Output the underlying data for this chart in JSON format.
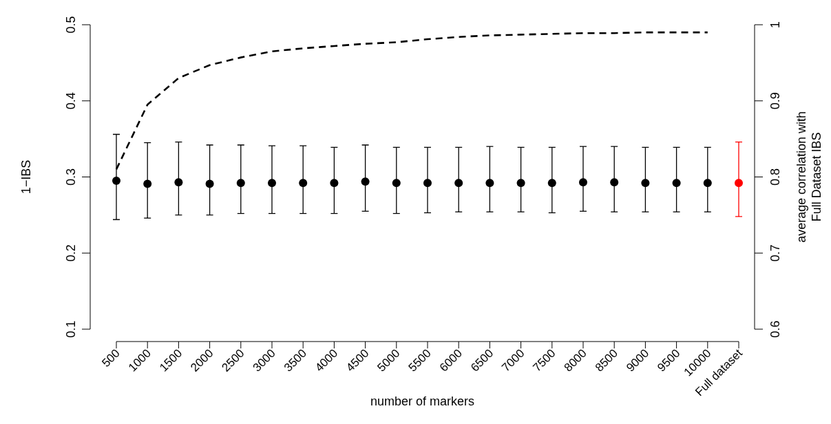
{
  "chart_data": {
    "type": "scatter",
    "xlabel": "number of markers",
    "ylabel": "1−IBS",
    "y2label": "average correlation with\nFull Dataset IBS",
    "categories": [
      "500",
      "1000",
      "1500",
      "2000",
      "2500",
      "3000",
      "3500",
      "4000",
      "4500",
      "5000",
      "5500",
      "6000",
      "6500",
      "7000",
      "7500",
      "8000",
      "8500",
      "9000",
      "9500",
      "10000",
      "Full dataset"
    ],
    "ylim": [
      0.1,
      0.5
    ],
    "yticks": [
      0.1,
      0.2,
      0.3,
      0.4,
      0.5
    ],
    "y2lim": [
      0.6,
      1
    ],
    "y2ticks": [
      0.6,
      0.7,
      0.8,
      0.9,
      1
    ],
    "grid": false,
    "series": [
      {
        "marker": "circle",
        "colors": [
          "#000000",
          "#000000",
          "#000000",
          "#000000",
          "#000000",
          "#000000",
          "#000000",
          "#000000",
          "#000000",
          "#000000",
          "#000000",
          "#000000",
          "#000000",
          "#000000",
          "#000000",
          "#000000",
          "#000000",
          "#000000",
          "#000000",
          "#000000",
          "#ff0000"
        ],
        "values": [
          0.295,
          0.291,
          0.293,
          0.291,
          0.292,
          0.292,
          0.292,
          0.292,
          0.294,
          0.292,
          0.292,
          0.292,
          0.292,
          0.292,
          0.292,
          0.293,
          0.293,
          0.292,
          0.292,
          0.292,
          0.292
        ],
        "errors": [
          [
            0.244,
            0.356
          ],
          [
            0.246,
            0.345
          ],
          [
            0.25,
            0.346
          ],
          [
            0.25,
            0.342
          ],
          [
            0.252,
            0.342
          ],
          [
            0.252,
            0.341
          ],
          [
            0.252,
            0.341
          ],
          [
            0.252,
            0.339
          ],
          [
            0.255,
            0.342
          ],
          [
            0.252,
            0.339
          ],
          [
            0.253,
            0.339
          ],
          [
            0.254,
            0.339
          ],
          [
            0.254,
            0.34
          ],
          [
            0.254,
            0.339
          ],
          [
            0.253,
            0.339
          ],
          [
            0.255,
            0.34
          ],
          [
            0.254,
            0.34
          ],
          [
            0.254,
            0.339
          ],
          [
            0.254,
            0.339
          ],
          [
            0.254,
            0.339
          ],
          [
            0.248,
            0.346
          ]
        ]
      },
      {
        "type": "line",
        "axis": "y2",
        "color": "#000000",
        "line_style": "dashed",
        "marker": "none",
        "values": [
          0.81,
          0.895,
          0.93,
          0.947,
          0.957,
          0.965,
          0.969,
          0.972,
          0.975,
          0.977,
          0.981,
          0.984,
          0.986,
          0.987,
          0.988,
          0.989,
          0.989,
          0.99,
          0.99,
          0.99,
          null
        ]
      }
    ]
  }
}
